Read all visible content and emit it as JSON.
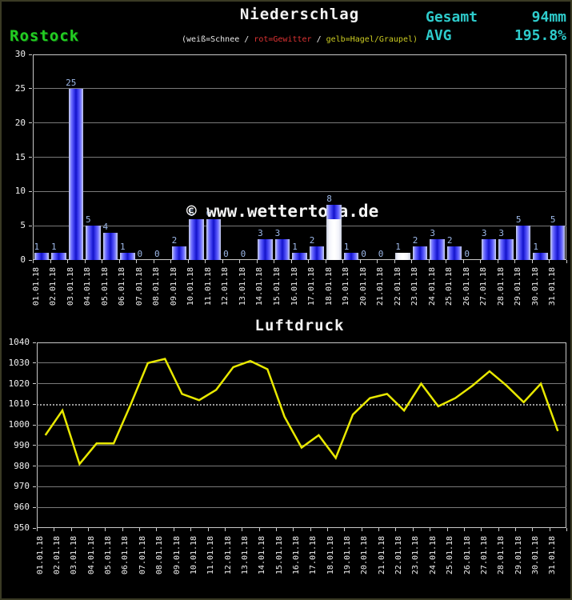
{
  "header": {
    "title": "Niederschlag",
    "station": "Rostock",
    "total_label": "Gesamt",
    "total_value": "94mm",
    "avg_label": "AVG",
    "avg_value": "195.8%",
    "legend_parts": [
      {
        "text": "(weiß=Schnee",
        "color": "#e8e8e8"
      },
      {
        "text": " / ",
        "color": "#e8e8e8"
      },
      {
        "text": "rot=Gewitter",
        "color": "#dd3333"
      },
      {
        "text": " / ",
        "color": "#e8e8e8"
      },
      {
        "text": "gelb=Hagel/Graupel)",
        "color": "#cccc22"
      }
    ]
  },
  "watermark": "© www.wettertoma.de",
  "colors": {
    "background": "#000000",
    "cyan": "#2ecccc",
    "green": "#22cc22",
    "red": "#dd3333",
    "yellow": "#cccc22",
    "pressure_line": "#e8e800",
    "bar_blue": "#2828e2",
    "bar_snow_white": "#ffffff",
    "bar_label_blue": "#9db8e8",
    "grid": "#7a7a7a"
  },
  "chart_data": [
    {
      "type": "bar",
      "title": "Niederschlag",
      "categories": [
        "01.01.18",
        "02.01.18",
        "03.01.18",
        "04.01.18",
        "05.01.18",
        "06.01.18",
        "07.01.18",
        "08.01.18",
        "09.01.18",
        "10.01.18",
        "11.01.18",
        "12.01.18",
        "13.01.18",
        "14.01.18",
        "15.01.18",
        "16.01.18",
        "17.01.18",
        "18.01.18",
        "19.01.18",
        "20.01.18",
        "21.01.18",
        "22.01.18",
        "23.01.18",
        "24.01.18",
        "25.01.18",
        "26.01.18",
        "27.01.18",
        "28.01.18",
        "29.01.18",
        "30.01.18",
        "31.01.18"
      ],
      "values": [
        1,
        1,
        25,
        5,
        4,
        1,
        0,
        0,
        2,
        6,
        6,
        0,
        0,
        3,
        3,
        1,
        2,
        8,
        1,
        0,
        0,
        1,
        2,
        3,
        2,
        0,
        3,
        3,
        5,
        1,
        5
      ],
      "white_bar_indices": [
        21
      ],
      "mixed_bar": {
        "index": 17,
        "white_up_to": 6
      },
      "title_note": "white bars = snow",
      "xlabel": "",
      "ylabel": "",
      "ylim": [
        0,
        30
      ],
      "ytick_step": 5,
      "grid": true
    },
    {
      "type": "line",
      "title": "Luftdruck",
      "categories": [
        "01.01.18",
        "02.01.18",
        "03.01.18",
        "04.01.18",
        "05.01.18",
        "06.01.18",
        "07.01.18",
        "08.01.18",
        "09.01.18",
        "10.01.18",
        "11.01.18",
        "12.01.18",
        "13.01.18",
        "14.01.18",
        "15.01.18",
        "16.01.18",
        "17.01.18",
        "18.01.18",
        "19.01.18",
        "20.01.18",
        "21.01.18",
        "22.01.18",
        "23.01.18",
        "24.01.18",
        "25.01.18",
        "26.01.18",
        "27.01.18",
        "28.01.18",
        "29.01.18",
        "30.01.18",
        "31.01.18"
      ],
      "values": [
        995,
        1007,
        981,
        991,
        991,
        1010,
        1030,
        1032,
        1015,
        1012,
        1017,
        1028,
        1031,
        1027,
        1004,
        989,
        995,
        984,
        1005,
        1013,
        1015,
        1007,
        1020,
        1009,
        1013,
        1019,
        1026,
        1019,
        1011,
        1020,
        997
      ],
      "xlabel": "",
      "ylabel": "",
      "ylim": [
        950,
        1040
      ],
      "ytick_step": 10,
      "dotted_gridline_at": 1010,
      "grid": true
    }
  ]
}
